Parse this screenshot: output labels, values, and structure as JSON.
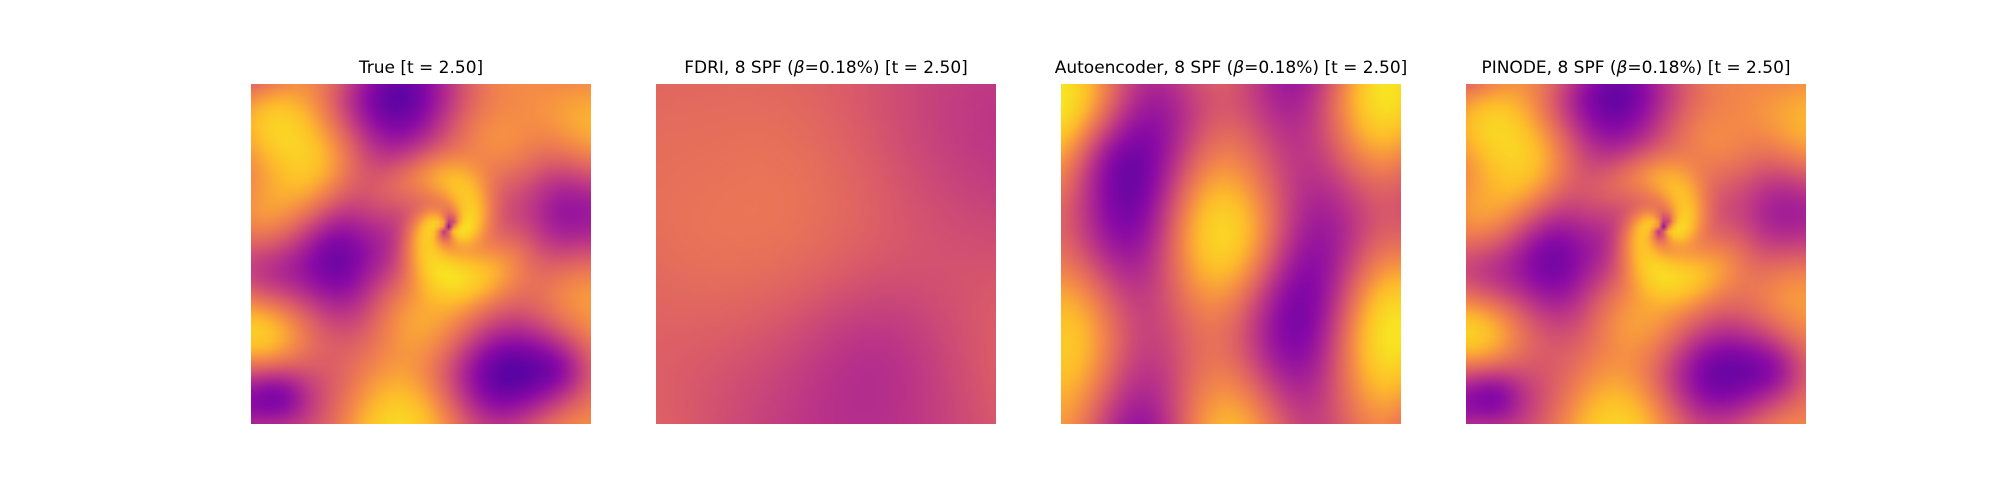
{
  "figure": {
    "panels": [
      {
        "id": "true",
        "title_pre": "True [t = 2.50]",
        "title_beta": "",
        "title_post": "",
        "field": "true",
        "colormap": "plasma"
      },
      {
        "id": "fdri",
        "title_pre": "FDRI, 8 SPF (",
        "title_beta": "β",
        "title_post": "=0.18%) [t = 2.50]",
        "field": "fdri",
        "colormap": "plasma"
      },
      {
        "id": "autoencoder",
        "title_pre": "Autoencoder, 8 SPF (",
        "title_beta": "β",
        "title_post": "=0.18%) [t = 2.50]",
        "field": "autoencoder",
        "colormap": "plasma"
      },
      {
        "id": "pinode",
        "title_pre": "PINODE, 8 SPF (",
        "title_beta": "β",
        "title_post": "=0.18%) [t = 2.50]",
        "field": "pinode",
        "colormap": "plasma"
      }
    ]
  }
}
